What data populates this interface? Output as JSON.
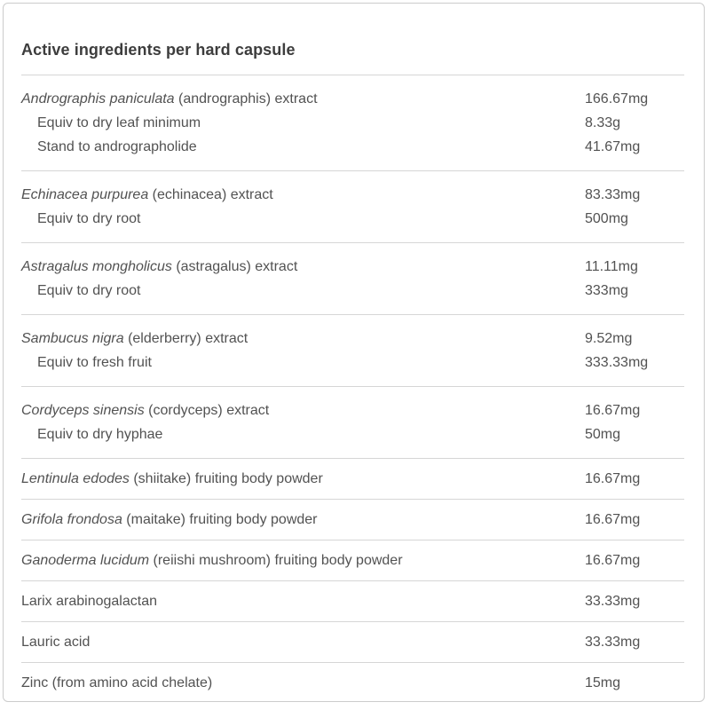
{
  "page": {
    "title": "Active ingredients per hard capsule"
  },
  "colors": {
    "background": "#ffffff",
    "heading_text": "#3d3d3d",
    "body_text": "#525252",
    "divider": "#d6d6d6",
    "panel_border": "#cccccc"
  },
  "table": {
    "rows": [
      {
        "latin": "Andrographis paniculata",
        "rest": " (andrographis) extract",
        "value": "166.67mg",
        "subs": [
          {
            "label": "Equiv to dry leaf minimum",
            "value": "8.33g"
          },
          {
            "label": "Stand to andrographolide",
            "value": "41.67mg"
          }
        ]
      },
      {
        "latin": "Echinacea purpurea",
        "rest": " (echinacea) extract",
        "value": "83.33mg",
        "subs": [
          {
            "label": "Equiv to dry root",
            "value": "500mg"
          }
        ]
      },
      {
        "latin": "Astragalus mongholicus",
        "rest": " (astragalus) extract",
        "value": "11.11mg",
        "subs": [
          {
            "label": "Equiv to dry root",
            "value": "333mg"
          }
        ]
      },
      {
        "latin": "Sambucus nigra",
        "rest": " (elderberry) extract",
        "value": "9.52mg",
        "subs": [
          {
            "label": "Equiv to fresh fruit",
            "value": "333.33mg"
          }
        ]
      },
      {
        "latin": "Cordyceps sinensis",
        "rest": " (cordyceps) extract",
        "value": "16.67mg",
        "subs": [
          {
            "label": "Equiv to dry hyphae",
            "value": "50mg"
          }
        ]
      },
      {
        "latin": "Lentinula edodes",
        "rest": " (shiitake) fruiting body powder",
        "value": "16.67mg",
        "subs": []
      },
      {
        "latin": "Grifola frondosa",
        "rest": " (maitake) fruiting body powder",
        "value": "16.67mg",
        "subs": []
      },
      {
        "latin": "Ganoderma lucidum",
        "rest": " (reiishi mushroom) fruiting body powder",
        "value": "16.67mg",
        "subs": []
      },
      {
        "latin": "",
        "rest": "Larix arabinogalactan",
        "value": "33.33mg",
        "subs": []
      },
      {
        "latin": "",
        "rest": "Lauric acid",
        "value": "33.33mg",
        "subs": []
      },
      {
        "latin": "",
        "rest": "Zinc (from amino acid chelate)",
        "value": "15mg",
        "subs": []
      }
    ]
  }
}
